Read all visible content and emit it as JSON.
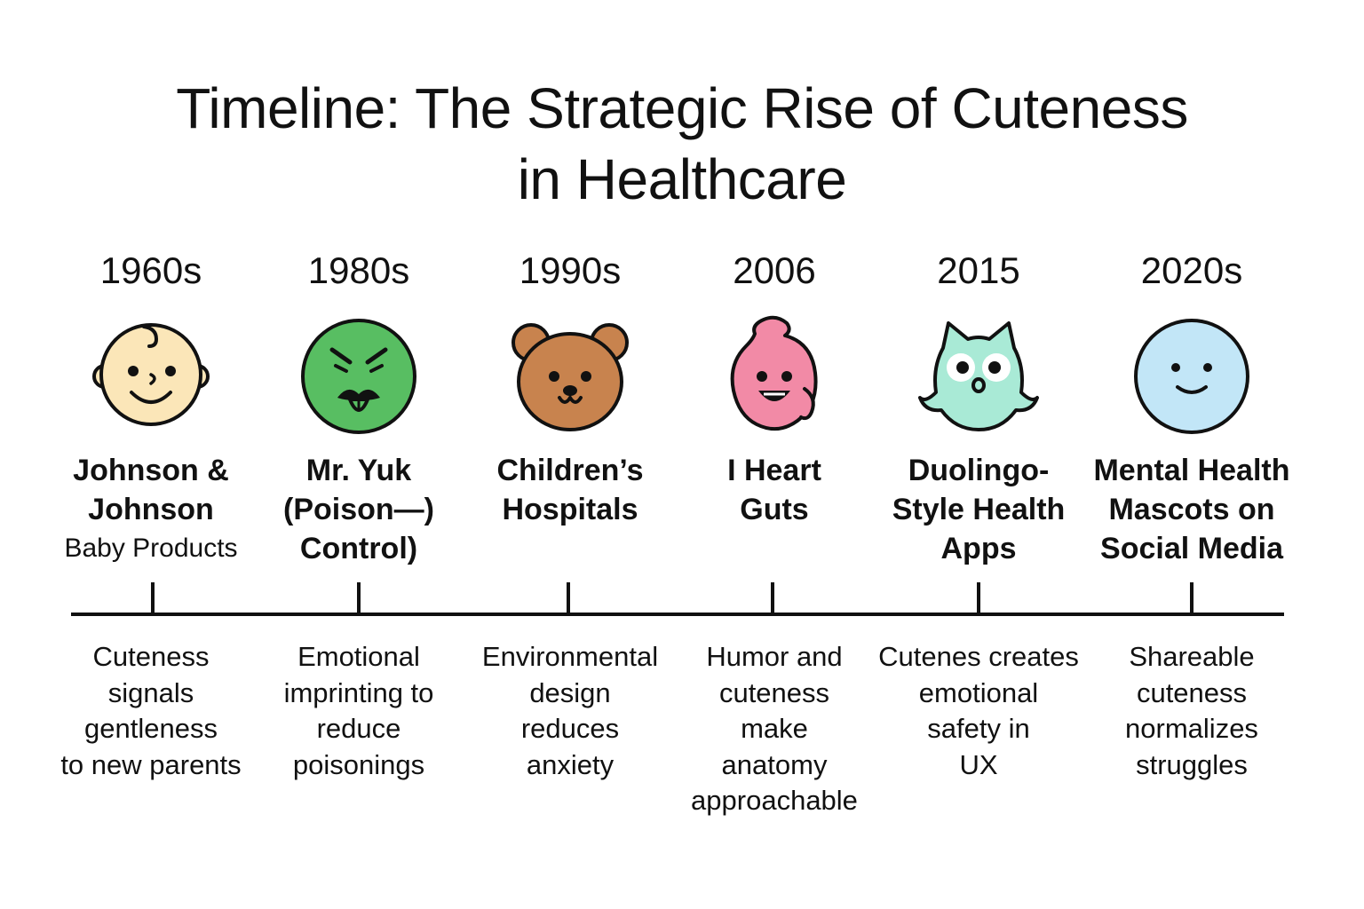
{
  "title": {
    "line1": "Timeline: The Strategic Rise of Cuteness",
    "line2": "in Healthcare"
  },
  "timeline": [
    {
      "year": "1960s",
      "icon": "baby-face-icon",
      "label_lines": [
        "Johnson &",
        "Johnson"
      ],
      "sub_label": "Baby Products",
      "description_lines": [
        "Cuteness",
        "signals",
        "gentleness",
        "to new parents"
      ]
    },
    {
      "year": "1980s",
      "icon": "mr-yuk-face-icon",
      "label_lines": [
        "Mr. Yuk",
        "(Poison—)",
        "Control)"
      ],
      "sub_label": "",
      "description_lines": [
        "Emotional",
        "imprinting to",
        "reduce",
        "poisonings"
      ]
    },
    {
      "year": "1990s",
      "icon": "teddy-bear-icon",
      "label_lines": [
        "Children’s",
        "Hospitals"
      ],
      "sub_label": "",
      "description_lines": [
        "Environmental",
        "design",
        "reduces",
        "anxiety"
      ]
    },
    {
      "year": "2006",
      "icon": "heart-plush-icon",
      "label_lines": [
        "I Heart",
        "Guts"
      ],
      "sub_label": "",
      "description_lines": [
        "Humor and",
        "cuteness",
        "make",
        "anatomy",
        "approachable"
      ]
    },
    {
      "year": "2015",
      "icon": "owl-mascot-icon",
      "label_lines": [
        "Duolingo-",
        "Style Health",
        "Apps"
      ],
      "sub_label": "",
      "description_lines": [
        "Cutenes creates",
        "emotional",
        "safety in",
        "UX"
      ]
    },
    {
      "year": "2020s",
      "icon": "smiley-face-icon",
      "label_lines": [
        "Mental Health",
        "Mascots on",
        "Social Media"
      ],
      "sub_label": "",
      "description_lines": [
        "Shareable",
        "cuteness",
        "normalizes",
        "struggles"
      ]
    }
  ],
  "colors": {
    "baby": "#FBE6B8",
    "yuk": "#58BE62",
    "bear": "#C8834E",
    "heart": "#F28AA6",
    "owl": "#A9EAD6",
    "smiley": "#C2E6F7",
    "line": "#111111"
  }
}
